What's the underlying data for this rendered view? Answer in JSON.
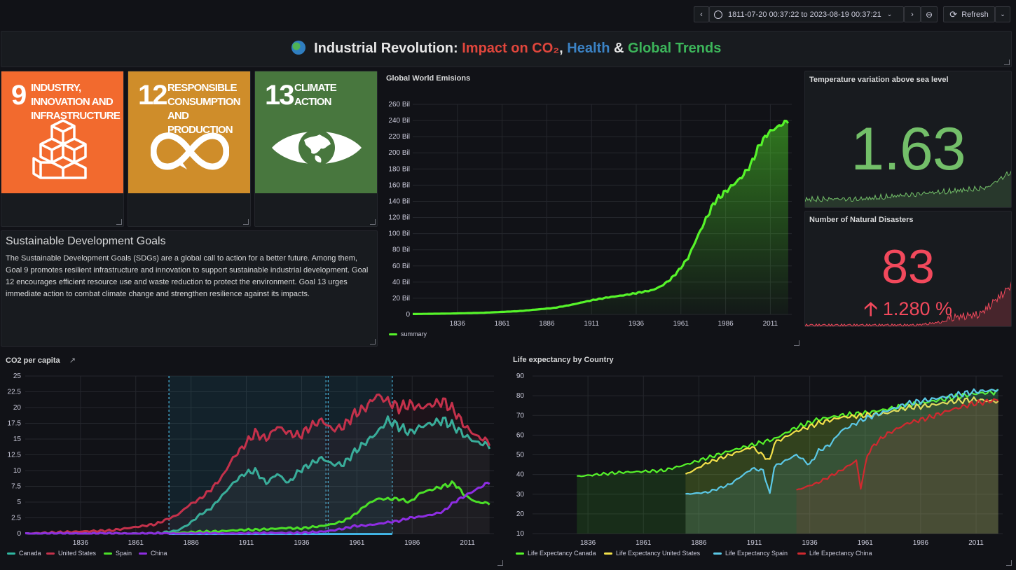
{
  "toolbar": {
    "time_range": "1811-07-20 00:37:22 to 2023-08-19 00:37:21",
    "refresh_label": "Refresh"
  },
  "header": {
    "part1": "Industrial Revolution: ",
    "part2": "Impact on CO₂",
    "part3": ", ",
    "part4": "Health",
    "part5": " & ",
    "part6": "Global Trends",
    "colors": {
      "impact": "#e0463c",
      "health": "#3b82c4",
      "trends": "#3cb55a"
    }
  },
  "sdg": [
    {
      "num": "9",
      "text": "INDUSTRY, INNOVATION AND INFRASTRUCTURE",
      "color": "#f26a2e"
    },
    {
      "num": "12",
      "text": "RESPONSIBLE CONSUMPTION AND PRODUCTION",
      "color": "#cf8d2a"
    },
    {
      "num": "13",
      "text": "CLIMATE ACTION",
      "color": "#48773e"
    }
  ],
  "description": {
    "title": "Sustainable Development Goals",
    "body": "The Sustainable Development Goals (SDGs) are a global call to action for a better future. Among them, Goal 9 promotes resilient infrastructure and innovation to support sustainable industrial development. Goal 12 encourages efficient resource use and waste reduction to protect the environment. Goal 13 urges immediate action to combat climate change and strengthen resilience against its impacts."
  },
  "emissions": {
    "title": "Global World Emisions",
    "legend": "summary",
    "color": "#56f42a"
  },
  "temperature": {
    "title": "Temperature variation above sea level",
    "value": "1.63",
    "color": "#73bf69"
  },
  "disasters": {
    "title": "Number of Natural Disasters",
    "value": "83",
    "change": "1.280 %",
    "color": "#f2495c"
  },
  "co2": {
    "title": "CO2 per capita"
  },
  "life": {
    "title": "Life expectancy by Country"
  },
  "chart_data": [
    {
      "type": "area",
      "title": "Global World Emisions",
      "series": [
        {
          "name": "summary",
          "color": "#56f42a"
        }
      ],
      "x": [
        1811,
        1830,
        1850,
        1870,
        1890,
        1900,
        1910,
        1920,
        1930,
        1940,
        1945,
        1950,
        1955,
        1960,
        1965,
        1970,
        1975,
        1980,
        1985,
        1990,
        1995,
        2000,
        2005,
        2010,
        2015,
        2021
      ],
      "values": [
        0.5,
        1,
        2,
        4,
        8,
        12,
        17,
        21,
        24,
        28,
        30,
        35,
        43,
        55,
        70,
        95,
        118,
        140,
        150,
        160,
        170,
        185,
        210,
        225,
        232,
        240
      ],
      "yunit": "Bil",
      "yticks": [
        "0",
        "20 Bil",
        "40 Bil",
        "60 Bil",
        "80 Bil",
        "100 Bil",
        "120 Bil",
        "140 Bil",
        "160 Bil",
        "180 Bil",
        "200 Bil",
        "220 Bil",
        "240 Bil",
        "260 Bil"
      ],
      "xticks": [
        "1836",
        "1861",
        "1886",
        "1911",
        "1936",
        "1961",
        "1986",
        "2011"
      ],
      "ylim": [
        0,
        260
      ],
      "xlim": [
        1811,
        2023
      ]
    },
    {
      "type": "line",
      "title": "CO2 per capita",
      "x": [
        1811,
        1850,
        1870,
        1880,
        1885,
        1890,
        1895,
        1900,
        1905,
        1910,
        1915,
        1920,
        1925,
        1930,
        1935,
        1940,
        1945,
        1950,
        1955,
        1960,
        1965,
        1970,
        1975,
        1980,
        1985,
        1990,
        1995,
        2000,
        2005,
        2010,
        2015,
        2021
      ],
      "series": [
        {
          "name": "Canada",
          "color": "#2fb7a1",
          "values": [
            0,
            0,
            0,
            0.5,
            1.5,
            3,
            4,
            6,
            8,
            9.5,
            10,
            8,
            9.5,
            8,
            10,
            11,
            12,
            11,
            11,
            13,
            14.5,
            16,
            18,
            17,
            16,
            17,
            17.5,
            18,
            17,
            15.5,
            14.5,
            14
          ]
        },
        {
          "name": "United States",
          "color": "#c4314b",
          "values": [
            0,
            0.5,
            1.5,
            3,
            4.5,
            5.5,
            7,
            9,
            12,
            14,
            16,
            15,
            17,
            16,
            15.5,
            17,
            18,
            16.5,
            17,
            19,
            20,
            22,
            21,
            20,
            20.5,
            20,
            20.5,
            21,
            19.5,
            17,
            15.5,
            14.5
          ]
        },
        {
          "name": "Spain",
          "color": "#4be028",
          "values": [
            0,
            0,
            0,
            0.1,
            0.2,
            0.3,
            0.3,
            0.4,
            0.5,
            0.6,
            0.6,
            0.7,
            0.8,
            0.9,
            0.8,
            1,
            1.2,
            1.5,
            2,
            3,
            4.5,
            5.5,
            5.5,
            5.5,
            5,
            6.5,
            7,
            7.5,
            8,
            6,
            5,
            4.8
          ]
        },
        {
          "name": "China",
          "color": "#8e2de2",
          "values": [
            0,
            0,
            0,
            0,
            0,
            0,
            0,
            0,
            0,
            0,
            0,
            0.1,
            0.1,
            0.1,
            0.1,
            0.2,
            0.3,
            0.5,
            0.8,
            1.2,
            1.3,
            1.5,
            1.8,
            2,
            2.5,
            2.7,
            3,
            3.5,
            5,
            6,
            7,
            8.2
          ]
        }
      ],
      "yticks": [
        "0",
        "2.5",
        "5",
        "7.5",
        "10",
        "12.5",
        "15",
        "17.5",
        "20",
        "22.5",
        "25"
      ],
      "xticks": [
        "1836",
        "1861",
        "1886",
        "1911",
        "1936",
        "1961",
        "1986",
        "2011"
      ],
      "ylim": [
        0,
        25
      ],
      "xlim": [
        1811,
        2023
      ]
    },
    {
      "type": "line",
      "title": "Life expectancy by Country",
      "series": [
        {
          "name": "Life Expectancy Canada",
          "color": "#56f42a",
          "x": [
            1831,
            1850,
            1870,
            1880,
            1900,
            1910,
            1920,
            1930,
            1940,
            1950,
            1960,
            1970,
            1980,
            1990,
            2000,
            2010,
            2021
          ],
          "values": [
            39,
            41,
            42,
            45,
            52,
            55,
            58,
            64,
            68,
            70,
            71,
            73,
            75,
            77,
            79,
            81,
            82
          ]
        },
        {
          "name": "Life Expectancy United States",
          "color": "#f2e04a",
          "x": [
            1880,
            1890,
            1900,
            1910,
            1918,
            1920,
            1930,
            1940,
            1950,
            1960,
            1970,
            1980,
            1990,
            2000,
            2010,
            2021
          ],
          "values": [
            40,
            46,
            50,
            54,
            47,
            56,
            62,
            66,
            69,
            70,
            71,
            74,
            75,
            77,
            78,
            77
          ]
        },
        {
          "name": "Life Expectancy Spain",
          "color": "#5bc8e6",
          "x": [
            1880,
            1890,
            1900,
            1910,
            1915,
            1918,
            1920,
            1930,
            1936,
            1940,
            1945,
            1950,
            1960,
            1970,
            1980,
            1990,
            2000,
            2010,
            2021
          ],
          "values": [
            30,
            31,
            35,
            43,
            42,
            30,
            44,
            50,
            45,
            52,
            55,
            62,
            68,
            72,
            76,
            78,
            80,
            82,
            83
          ]
        },
        {
          "name": "Life Expectancy China",
          "color": "#d0292f",
          "x": [
            1930,
            1940,
            1950,
            1957,
            1959,
            1962,
            1965,
            1970,
            1980,
            1990,
            2000,
            2010,
            2021
          ],
          "values": [
            32,
            36,
            42,
            47,
            33,
            50,
            55,
            60,
            66,
            69,
            73,
            76,
            78
          ]
        }
      ],
      "yticks": [
        "10",
        "20",
        "30",
        "40",
        "50",
        "60",
        "70",
        "80",
        "90"
      ],
      "xticks": [
        "1836",
        "1861",
        "1886",
        "1911",
        "1936",
        "1961",
        "1986",
        "2011"
      ],
      "ylim": [
        10,
        90
      ],
      "xlim": [
        1811,
        2023
      ]
    }
  ]
}
